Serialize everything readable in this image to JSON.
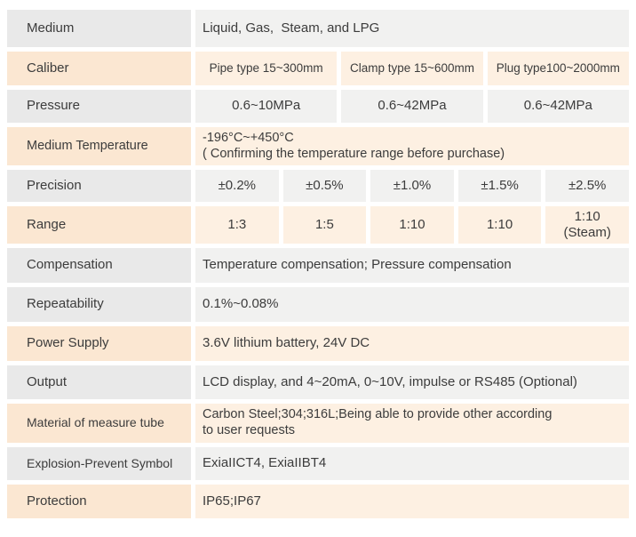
{
  "table": {
    "colors": {
      "gray_label": "#e9e9e9",
      "gray_value": "#f1f1f0",
      "peach_label": "#fbe7d2",
      "peach_value": "#fdf0e2",
      "text": "#3c3c3c"
    },
    "rows": [
      {
        "label": "Medium",
        "tone": "gray",
        "cells": [
          {
            "text": "Liquid, Gas,  Steam, and LPG"
          }
        ]
      },
      {
        "label": "Caliber",
        "tone": "peach",
        "cells": [
          {
            "text": "Pipe type 15~300mm"
          },
          {
            "text": "Clamp type 15~600mm"
          },
          {
            "text": "Plug type100~2000mm"
          }
        ]
      },
      {
        "label": "Pressure",
        "tone": "gray",
        "cells": [
          {
            "text": "0.6~10MPa"
          },
          {
            "text": "0.6~42MPa"
          },
          {
            "text": "0.6~42MPa"
          }
        ]
      },
      {
        "label": "Medium Temperature",
        "tone": "peach",
        "cells": [
          {
            "text": "-196°C~+450°C\n( Confirming the temperature range before purchase)"
          }
        ]
      },
      {
        "label": "Precision",
        "tone": "gray",
        "cells": [
          {
            "text": "±0.2%"
          },
          {
            "text": "±0.5%"
          },
          {
            "text": "±1.0%"
          },
          {
            "text": "±1.5%"
          },
          {
            "text": "±2.5%"
          }
        ]
      },
      {
        "label": "Range",
        "tone": "peach",
        "cells": [
          {
            "text": "1:3"
          },
          {
            "text": "1:5"
          },
          {
            "text": "1:10"
          },
          {
            "text": "1:10"
          },
          {
            "text": "1:10\n(Steam)"
          }
        ]
      },
      {
        "label": "Compensation",
        "tone": "gray",
        "cells": [
          {
            "text": "Temperature compensation; Pressure compensation"
          }
        ]
      },
      {
        "label": "Repeatability",
        "tone": "gray",
        "cells": [
          {
            "text": "0.1%~0.08%"
          }
        ]
      },
      {
        "label": "Power Supply",
        "tone": "peach",
        "cells": [
          {
            "text": "3.6V lithium battery, 24V DC"
          }
        ]
      },
      {
        "label": "Output",
        "tone": "gray",
        "cells": [
          {
            "text": "LCD display, and 4~20mA, 0~10V, impulse or RS485 (Optional)"
          }
        ]
      },
      {
        "label": "Material of measure tube",
        "tone": "peach",
        "cells": [
          {
            "text": "Carbon Steel;304;316L;Being able to provide other according\nto user requests"
          }
        ]
      },
      {
        "label": "Explosion-Prevent Symbol",
        "tone": "gray",
        "cells": [
          {
            "text": "ExiaIICT4, ExiaIIBT4"
          }
        ]
      },
      {
        "label": "Protection",
        "tone": "peach",
        "cells": [
          {
            "text": "IP65;IP67"
          }
        ]
      }
    ]
  }
}
